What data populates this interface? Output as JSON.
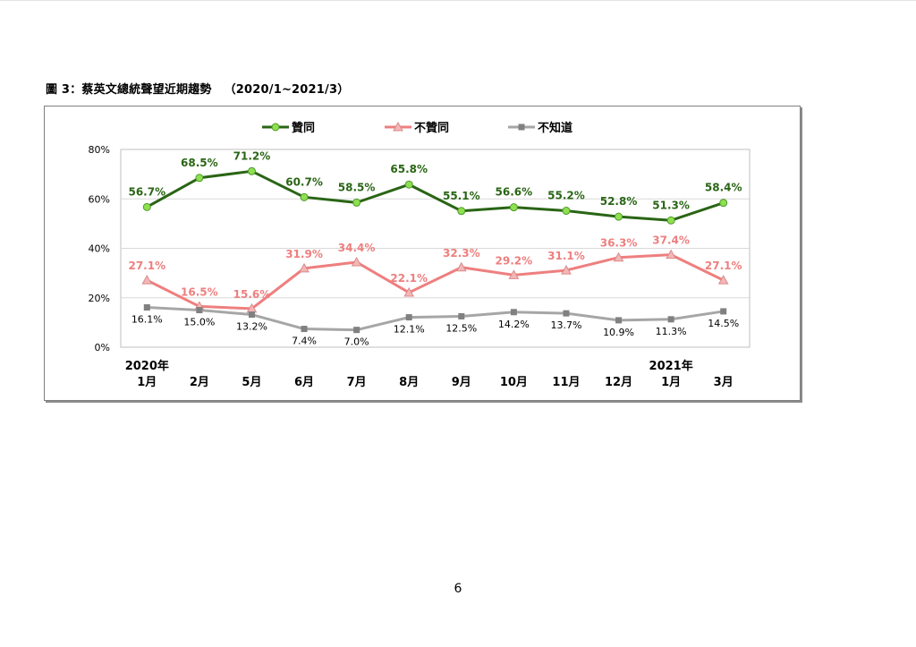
{
  "figure": {
    "title_prefix": "圖 3：蔡英文總統聲望近期趨勢",
    "title_range": "（2020/1~2021/3）"
  },
  "page": {
    "number": "6"
  },
  "chart_data": {
    "type": "line",
    "categories": [
      [
        "2020年",
        "1月"
      ],
      [
        "2月"
      ],
      [
        "5月"
      ],
      [
        "6月"
      ],
      [
        "7月"
      ],
      [
        "8月"
      ],
      [
        "9月"
      ],
      [
        "10月"
      ],
      [
        "11月"
      ],
      [
        "12月"
      ],
      [
        "2021年",
        "1月"
      ],
      [
        "3月"
      ]
    ],
    "series": [
      {
        "name": "贊同",
        "values": [
          56.7,
          68.5,
          71.2,
          60.7,
          58.5,
          65.8,
          55.1,
          56.6,
          55.2,
          52.8,
          51.3,
          58.4
        ],
        "labels": [
          "56.7%",
          "68.5%",
          "71.2%",
          "60.7%",
          "58.5%",
          "65.8%",
          "55.1%",
          "56.6%",
          "55.2%",
          "52.8%",
          "51.3%",
          "58.4%"
        ],
        "color": "#2a6515",
        "marker": "circle",
        "marker_color": "#8ee050"
      },
      {
        "name": "不贊同",
        "values": [
          27.1,
          16.5,
          15.6,
          31.9,
          34.4,
          22.1,
          32.3,
          29.2,
          31.1,
          36.3,
          37.4,
          27.1
        ],
        "labels": [
          "27.1%",
          "16.5%",
          "15.6%",
          "31.9%",
          "34.4%",
          "22.1%",
          "32.3%",
          "29.2%",
          "31.1%",
          "36.3%",
          "37.4%",
          "27.1%"
        ],
        "color": "#ee7f7f",
        "marker": "triangle",
        "marker_color": "#f2b8b8"
      },
      {
        "name": "不知道",
        "values": [
          16.1,
          15.0,
          13.2,
          7.4,
          7.0,
          12.1,
          12.5,
          14.2,
          13.7,
          10.9,
          11.3,
          14.5
        ],
        "labels": [
          "16.1%",
          "15.0%",
          "13.2%",
          "7.4%",
          "7.0%",
          "12.1%",
          "12.5%",
          "14.2%",
          "13.7%",
          "10.9%",
          "11.3%",
          "14.5%"
        ],
        "color": "#a6a6a6",
        "marker": "square",
        "marker_color": "#808080"
      }
    ],
    "yticks": [
      "0%",
      "20%",
      "40%",
      "60%",
      "80%"
    ],
    "ylim": [
      0,
      80
    ],
    "legend_position": "top",
    "grid": true
  }
}
